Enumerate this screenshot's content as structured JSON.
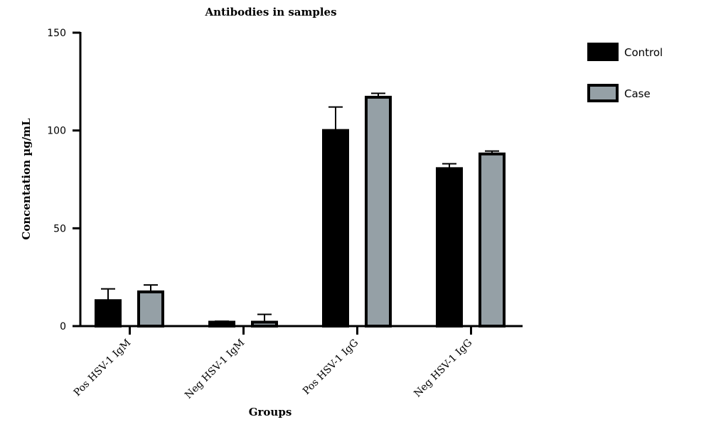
{
  "chart_data": {
    "type": "bar",
    "title": "Antibodies in samples",
    "xlabel": "Groups",
    "ylabel": "Concentation µg/mL",
    "ylim": [
      0,
      150
    ],
    "yticks": [
      0,
      50,
      100,
      150
    ],
    "categories": [
      "Pos HSV-1 IgM",
      "Neg HSV-1 IgM",
      "Pos HSV-1 IgG",
      "Neg HSV-1 IgG"
    ],
    "series": [
      {
        "name": "Control",
        "color": "#000000",
        "values": [
          13,
          2,
          100,
          80.5
        ],
        "error": [
          6,
          0.5,
          12,
          2.5
        ]
      },
      {
        "name": "Case",
        "color": "#95a0a6",
        "values": [
          17.5,
          2,
          117,
          88
        ],
        "error": [
          3.5,
          4,
          2,
          1.5
        ]
      }
    ],
    "legend_position": "top-right",
    "grid": false
  }
}
